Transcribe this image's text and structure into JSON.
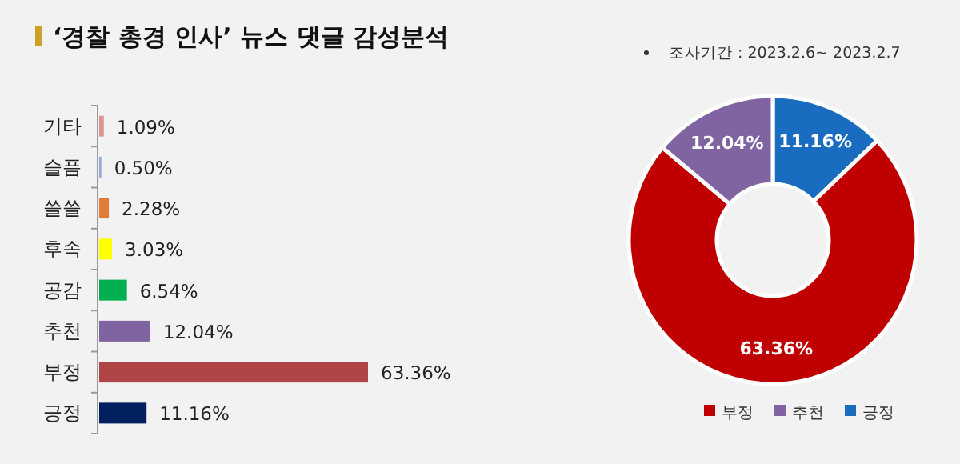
{
  "chart_data": [
    {
      "type": "bar",
      "orientation": "horizontal",
      "title": "‘경찰 총경 인사’ 뉴스 댓글 감성분석",
      "categories": [
        "기타",
        "슬픔",
        "쓸쓸",
        "후속",
        "공감",
        "추천",
        "부정",
        "긍정"
      ],
      "values": [
        1.09,
        0.5,
        2.28,
        3.03,
        6.54,
        12.04,
        63.36,
        11.16
      ],
      "value_labels": [
        "1.09%",
        "0.50%",
        "2.28%",
        "3.03%",
        "6.54%",
        "12.04%",
        "63.36%",
        "11.16%"
      ],
      "colors": [
        "#d99694",
        "#8ea9db",
        "#e07b39",
        "#ffff00",
        "#00b050",
        "#8064a2",
        "#b04545",
        "#002060"
      ]
    },
    {
      "type": "donut",
      "subtitle": "조사기간 : 2023.2.6~ 2023.2.7",
      "categories": [
        "긍정",
        "부정",
        "추천"
      ],
      "values": [
        11.16,
        63.36,
        12.04
      ],
      "value_labels": [
        "11.16%",
        "63.36%",
        "12.04%"
      ],
      "colors": [
        "#1a6cc0",
        "#c00000",
        "#8064a2"
      ],
      "legend": "bottom"
    }
  ]
}
